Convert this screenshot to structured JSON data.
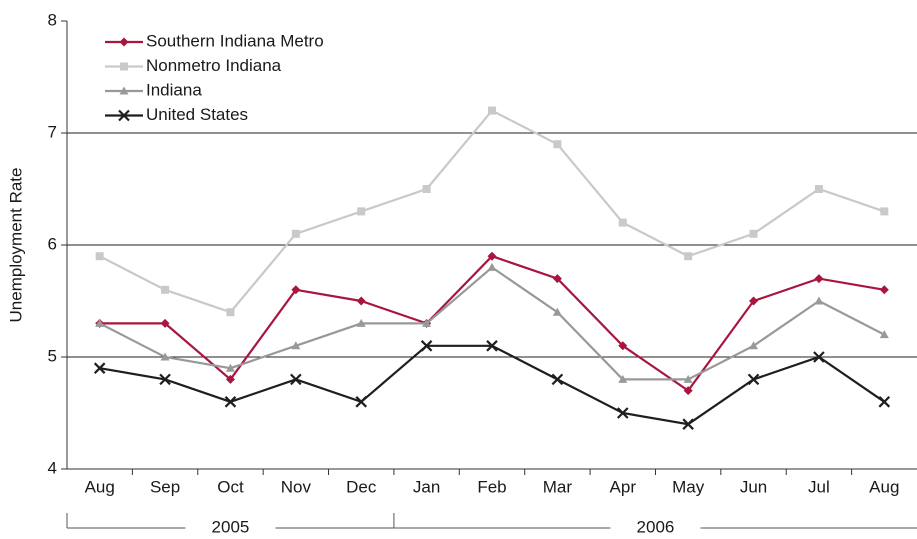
{
  "chart_data": {
    "type": "line",
    "y_label": "Unemployment Rate",
    "categories": [
      "Aug",
      "Sep",
      "Oct",
      "Nov",
      "Dec",
      "Jan",
      "Feb",
      "Mar",
      "Apr",
      "May",
      "Jun",
      "Jul",
      "Aug"
    ],
    "category_groups": [
      {
        "label": "2005",
        "span": 5
      },
      {
        "label": "2006",
        "span": 8
      }
    ],
    "ylim": [
      4,
      8
    ],
    "yticks": [
      4,
      5,
      6,
      7,
      8
    ],
    "grid": true,
    "legend": "top-left",
    "series": [
      {
        "name": "Southern Indiana Metro",
        "color": "#a8163f",
        "marker": "diamond",
        "values": [
          5.3,
          5.3,
          4.8,
          5.6,
          5.5,
          5.3,
          5.9,
          5.7,
          5.1,
          4.7,
          5.5,
          5.7,
          5.6
        ]
      },
      {
        "name": "Nonmetro Indiana",
        "color": "#c9c9c9",
        "marker": "square",
        "values": [
          5.9,
          5.6,
          5.4,
          6.1,
          6.3,
          6.5,
          7.2,
          6.9,
          6.2,
          5.9,
          6.1,
          6.5,
          6.3
        ]
      },
      {
        "name": "Indiana",
        "color": "#999999",
        "marker": "triangle",
        "values": [
          5.3,
          5.0,
          4.9,
          5.1,
          5.3,
          5.3,
          5.8,
          5.4,
          4.8,
          4.8,
          5.1,
          5.5,
          5.2
        ]
      },
      {
        "name": "United States",
        "color": "#1e1e1e",
        "marker": "x",
        "values": [
          4.9,
          4.8,
          4.6,
          4.8,
          4.6,
          5.1,
          5.1,
          4.8,
          4.5,
          4.4,
          4.8,
          5.0,
          4.6
        ]
      }
    ]
  }
}
